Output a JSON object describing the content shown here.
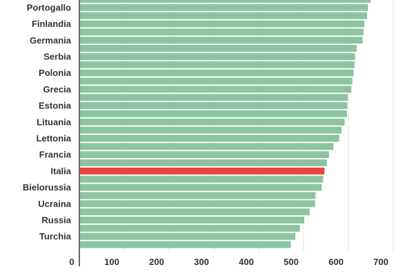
{
  "chart_data": {
    "type": "bar",
    "orientation": "horizontal",
    "categories": [
      "",
      "Portogallo",
      "",
      "Finlandia",
      "",
      "Germania",
      "",
      "Serbia",
      "",
      "Polonia",
      "",
      "Grecia",
      "",
      "Estonia",
      "",
      "Lituania",
      "",
      "Lettonia",
      "",
      "Francia",
      "",
      "Italia",
      "",
      "Bielorussia",
      "",
      "Ucraina",
      "",
      "Russia",
      "",
      "Turchia",
      ""
    ],
    "values": [
      648,
      642,
      640,
      634,
      632,
      630,
      617,
      613,
      612,
      610,
      607,
      605,
      597,
      596,
      595,
      590,
      583,
      578,
      565,
      555,
      550,
      545,
      542,
      539,
      525,
      524,
      512,
      500,
      490,
      480,
      470
    ],
    "highlight_category": "Italia",
    "xlim": [
      0,
      700
    ],
    "xticks": [
      0,
      100,
      200,
      300,
      400,
      500,
      600,
      700
    ],
    "grid": true,
    "title": "",
    "xlabel": "",
    "ylabel": ""
  },
  "colors": {
    "bar": "#8cc4a2",
    "highlight": "#e8453c",
    "axis": "#333333",
    "grid": "#e3e3e3",
    "text": "#333333"
  }
}
